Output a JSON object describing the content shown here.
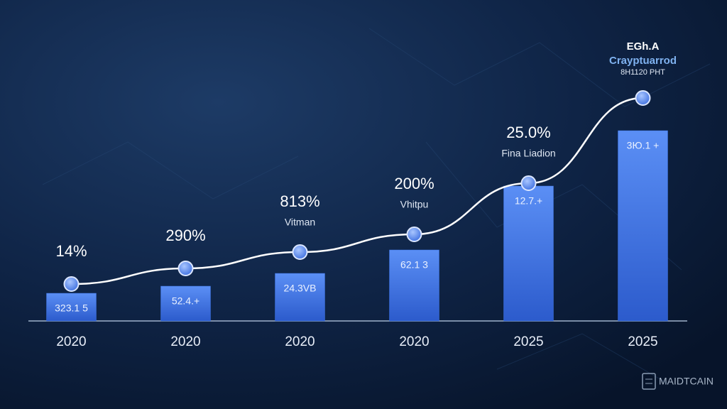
{
  "chart_data": {
    "type": "bar_line",
    "categories": [
      "2020",
      "2020",
      "2020",
      "2020",
      "2025",
      "2025"
    ],
    "series": [
      {
        "type": "bar",
        "color": "#3d72e0",
        "values": [
          39,
          49,
          67,
          100,
          190,
          268
        ],
        "bar_labels": [
          "323.1 5",
          "52.4.+",
          "24.3VB",
          "62.1 3",
          "12.7.+",
          "3Ю.1 +"
        ]
      },
      {
        "type": "line",
        "color": "#ffffff",
        "values": [
          52,
          74,
          97,
          122,
          194,
          314
        ],
        "point_labels": [
          "14%",
          "290%",
          "813%",
          "200%",
          "25.0%",
          null
        ],
        "point_sublabels": [
          null,
          null,
          "Vitman",
          "Vhitpu",
          "Fina Liadion",
          null
        ]
      }
    ],
    "ylim": [
      0,
      320
    ],
    "annotation": [
      "EGh.A",
      "Crayptuarrod",
      "8H1120 PHT"
    ]
  },
  "watermark": "MAIDTCAIN"
}
